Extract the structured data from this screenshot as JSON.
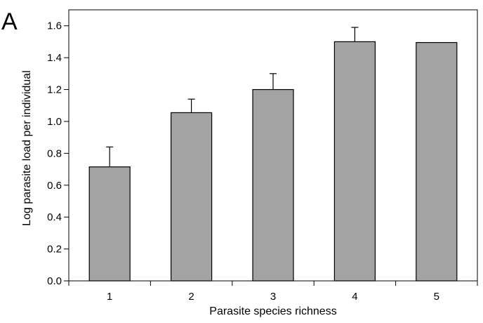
{
  "panel_label": "A",
  "chart_data": {
    "type": "bar",
    "categories": [
      "1",
      "2",
      "3",
      "4",
      "5"
    ],
    "values": [
      0.715,
      1.055,
      1.2,
      1.5,
      1.495
    ],
    "error_upper": [
      0.84,
      1.14,
      1.3,
      1.59,
      null
    ],
    "xlabel": "Parasite species richness",
    "ylabel": "Log parasite load per individual",
    "ylim": [
      0.0,
      1.7
    ],
    "yticks": [
      "0.0",
      "0.2",
      "0.4",
      "0.6",
      "0.8",
      "1.0",
      "1.2",
      "1.4",
      "1.6"
    ],
    "grid": false,
    "legend": "none",
    "colors": {
      "bar": "#a3a3a3",
      "outline": "#000000"
    }
  }
}
